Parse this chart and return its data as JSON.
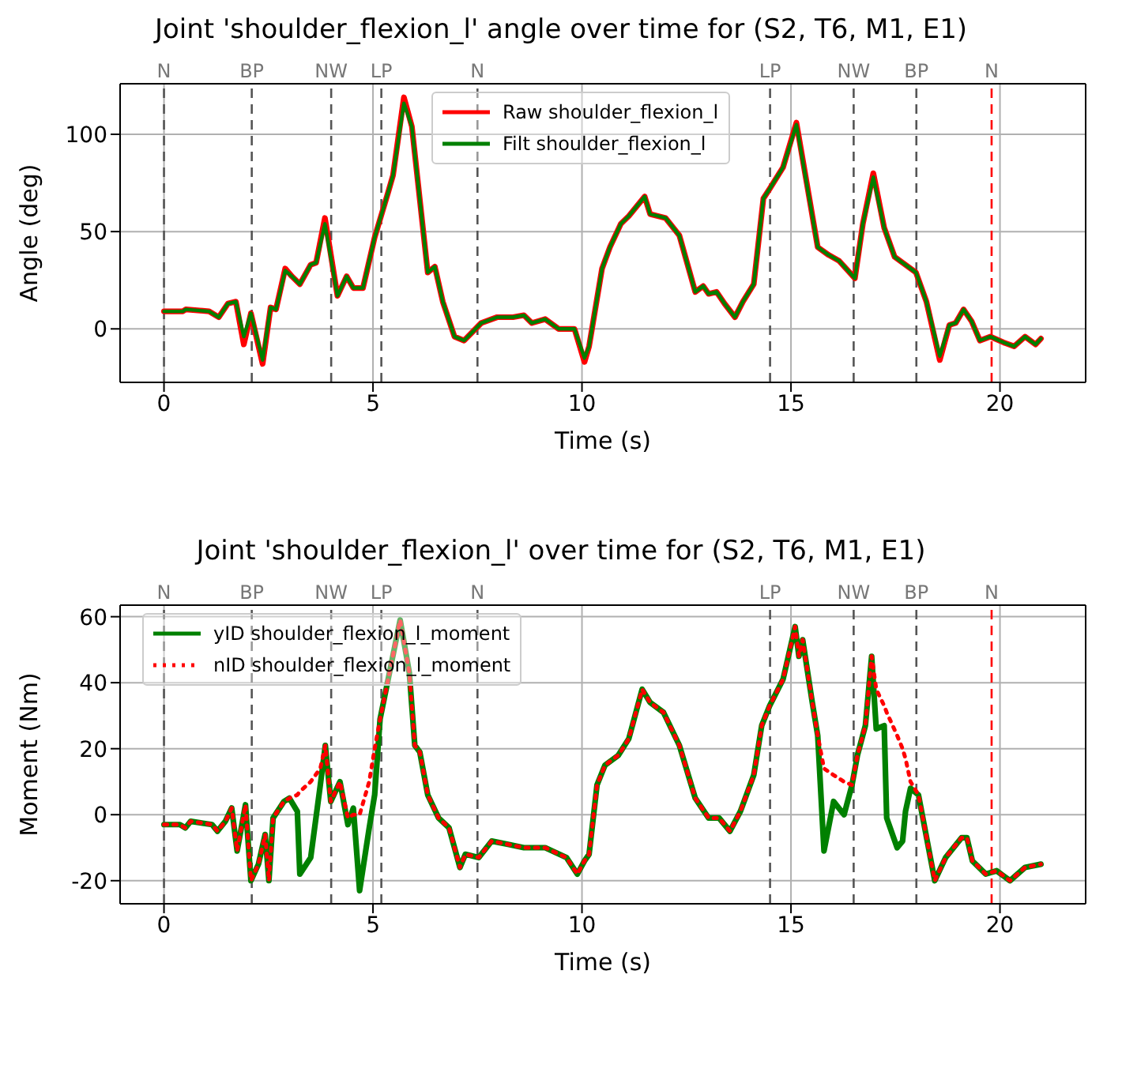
{
  "chart_data": [
    {
      "type": "line",
      "title": "Joint 'shoulder_flexion_l' angle over time for (S2, T6, M1, E1)",
      "xlabel": "Time (s)",
      "ylabel": "Angle (deg)",
      "x": [
        0,
        0.45,
        0.52,
        1.08,
        1.31,
        1.53,
        1.72,
        1.91,
        2.08,
        2.36,
        2.55,
        2.68,
        2.9,
        3.06,
        3.25,
        3.51,
        3.64,
        3.85,
        4.15,
        4.37,
        4.53,
        4.76,
        5.04,
        5.36,
        5.48,
        5.74,
        5.93,
        6.31,
        6.48,
        6.67,
        6.95,
        7.18,
        7.59,
        7.97,
        8.35,
        8.61,
        8.8,
        9.12,
        9.44,
        9.82,
        10.06,
        10.17,
        10.48,
        10.67,
        10.93,
        11.12,
        11.5,
        11.63,
        12.0,
        12.33,
        12.71,
        12.9,
        13.03,
        13.22,
        13.41,
        13.66,
        13.85,
        14.11,
        14.34,
        14.49,
        14.81,
        15.13,
        15.64,
        15.9,
        16.15,
        16.53,
        16.72,
        16.97,
        17.23,
        17.48,
        17.99,
        18.24,
        18.56,
        18.79,
        18.94,
        19.13,
        19.32,
        19.52,
        19.77,
        20.09,
        20.34,
        20.6,
        20.85,
        20.98
      ],
      "series": [
        {
          "name": "Raw shoulder_flexion_l",
          "color": "#ff0000",
          "values": [
            9,
            9,
            10,
            9,
            6,
            13,
            14,
            -8,
            8,
            -18,
            11,
            10,
            31,
            27,
            23,
            33,
            34,
            57,
            17,
            27,
            21,
            21,
            47,
            70,
            79,
            119,
            104,
            29,
            32,
            14,
            -4,
            -6,
            3,
            6,
            6,
            7,
            3,
            5,
            0,
            0,
            -17,
            -9,
            31,
            42,
            54,
            58,
            68,
            59,
            57,
            48,
            19,
            22,
            18,
            19,
            13,
            6,
            14,
            23,
            67,
            72,
            83,
            106,
            42,
            38,
            35,
            26,
            54,
            80,
            52,
            37,
            29,
            14,
            -16,
            2,
            3,
            10,
            4,
            -6,
            -4,
            -7,
            -9,
            -4,
            -8,
            -5
          ]
        },
        {
          "name": "Filt shoulder_flexion_l",
          "color": "#008000",
          "values": [
            9,
            9,
            10,
            9,
            6,
            13,
            14,
            -4,
            8,
            -16,
            11,
            10,
            30,
            27,
            23,
            33,
            34,
            54,
            17,
            27,
            21,
            21,
            47,
            70,
            79,
            116,
            104,
            29,
            32,
            14,
            -4,
            -6,
            3,
            6,
            6,
            7,
            3,
            5,
            0,
            0,
            -15,
            -9,
            31,
            42,
            54,
            58,
            68,
            59,
            57,
            48,
            19,
            22,
            18,
            19,
            13,
            6,
            14,
            23,
            67,
            72,
            83,
            105,
            42,
            38,
            35,
            26,
            54,
            78,
            52,
            37,
            29,
            14,
            -14,
            2,
            3,
            10,
            4,
            -6,
            -4,
            -7,
            -9,
            -4,
            -8,
            -5
          ]
        }
      ],
      "xlim": [
        -1.05,
        22.05
      ],
      "xticks": [
        0,
        5,
        10,
        15,
        20
      ],
      "ylim": [
        -27.5,
        126
      ],
      "yticks": [
        0,
        50,
        100
      ],
      "grid": true,
      "legend": "top",
      "marker": "none",
      "line_style": "solid",
      "ref_lines": [
        {
          "axis": "x",
          "value": 0,
          "label": "N",
          "color": "#555555",
          "line_style": "dashed"
        },
        {
          "axis": "x",
          "value": 2.1,
          "label": "BP",
          "color": "#555555",
          "line_style": "dashed"
        },
        {
          "axis": "x",
          "value": 4.0,
          "label": "NW",
          "color": "#555555",
          "line_style": "dashed"
        },
        {
          "axis": "x",
          "value": 5.2,
          "label": "LP",
          "color": "#555555",
          "line_style": "dashed"
        },
        {
          "axis": "x",
          "value": 7.5,
          "label": "N",
          "color": "#555555",
          "line_style": "dashed"
        },
        {
          "axis": "x",
          "value": 14.5,
          "label": "LP",
          "color": "#555555",
          "line_style": "dashed"
        },
        {
          "axis": "x",
          "value": 16.5,
          "label": "NW",
          "color": "#555555",
          "line_style": "dashed"
        },
        {
          "axis": "x",
          "value": 18.0,
          "label": "BP",
          "color": "#555555",
          "line_style": "dashed"
        },
        {
          "axis": "x",
          "value": 19.8,
          "label": "N",
          "color": "#ff0000",
          "line_style": "dashed"
        }
      ]
    },
    {
      "type": "line",
      "title": "Joint 'shoulder_flexion_l' over time for (S2, T6, M1, E1)",
      "xlabel": "Time (s)",
      "ylabel": "Moment (Nm)",
      "x": [
        0,
        0.38,
        0.51,
        0.64,
        1.15,
        1.28,
        1.47,
        1.62,
        1.75,
        1.95,
        2.08,
        2.26,
        2.42,
        2.51,
        2.61,
        2.87,
        3.0,
        3.19,
        3.25,
        3.51,
        3.74,
        3.86,
        3.99,
        4.21,
        4.4,
        4.53,
        4.68,
        4.91,
        5.04,
        5.17,
        5.65,
        5.87,
        6.0,
        6.12,
        6.31,
        6.57,
        6.82,
        7.08,
        7.21,
        7.53,
        7.84,
        8.23,
        8.61,
        9.12,
        9.63,
        9.89,
        10.06,
        10.17,
        10.36,
        10.55,
        10.87,
        11.12,
        11.44,
        11.63,
        11.95,
        12.33,
        12.71,
        13.03,
        13.28,
        13.54,
        13.79,
        14.11,
        14.3,
        14.49,
        14.81,
        15.1,
        15.19,
        15.28,
        15.51,
        15.64,
        15.79,
        16.02,
        16.27,
        16.46,
        16.59,
        16.78,
        16.93,
        17.04,
        17.23,
        17.29,
        17.54,
        17.67,
        17.74,
        17.86,
        18.05,
        18.44,
        18.7,
        19.08,
        19.21,
        19.34,
        19.66,
        19.92,
        20.24,
        20.6,
        20.98
      ],
      "series": [
        {
          "name": "yID shoulder_flexion_l_moment",
          "color": "#008000",
          "line_style": "solid",
          "values": [
            -3,
            -3,
            -4,
            -2,
            -3,
            -5,
            -2,
            2,
            -11,
            3,
            -20,
            -15,
            -6,
            -20,
            -1,
            4,
            5,
            1,
            -18,
            -13,
            9,
            21,
            4,
            10,
            -3,
            2,
            -23,
            -4,
            6,
            29,
            59,
            43,
            21,
            19,
            6,
            -1,
            -4,
            -16,
            -12,
            -13,
            -8,
            -9,
            -10,
            -10,
            -13,
            -18,
            -14,
            -12,
            9,
            15,
            18,
            23,
            38,
            34,
            31,
            21,
            5,
            -1,
            -1,
            -5,
            1,
            12,
            27,
            33,
            41,
            57,
            48,
            53,
            34,
            24,
            -11,
            4,
            0,
            9,
            18,
            27,
            48,
            26,
            27,
            -1,
            -10,
            -8,
            1,
            8,
            6,
            -20,
            -13,
            -7,
            -7,
            -14,
            -18,
            -17,
            -20,
            -16,
            -15
          ]
        },
        {
          "name": "nID shoulder_flexion_l_moment",
          "color": "#ff0000",
          "line_style": "dotted",
          "values": [
            -3,
            -3,
            -4,
            -2,
            -3,
            -5,
            -2,
            2,
            -11,
            3,
            -20,
            -15,
            -6,
            -20,
            -1,
            4,
            5,
            6,
            7,
            10,
            14,
            21,
            4,
            10,
            -1,
            0,
            0,
            10,
            20,
            29,
            59,
            43,
            21,
            19,
            6,
            -1,
            -4,
            -16,
            -12,
            -13,
            -8,
            -9,
            -10,
            -10,
            -13,
            -18,
            -14,
            -12,
            9,
            15,
            18,
            23,
            38,
            34,
            31,
            21,
            5,
            -1,
            -1,
            -5,
            1,
            12,
            27,
            33,
            41,
            57,
            48,
            53,
            34,
            24,
            14,
            12,
            10,
            9,
            18,
            27,
            48,
            38,
            33,
            31,
            24,
            20,
            17,
            10,
            6,
            -20,
            -13,
            -7,
            -7,
            -14,
            -18,
            -17,
            -20,
            -16,
            -15
          ]
        }
      ],
      "xlim": [
        -1.05,
        22.05
      ],
      "xticks": [
        0,
        5,
        10,
        15,
        20
      ],
      "ylim": [
        -27,
        63.5
      ],
      "yticks": [
        -20,
        0,
        20,
        40,
        60
      ],
      "grid": true,
      "legend": "top left",
      "marker": "none",
      "ref_lines": [
        {
          "axis": "x",
          "value": 0,
          "label": "N",
          "color": "#555555",
          "line_style": "dashed"
        },
        {
          "axis": "x",
          "value": 2.1,
          "label": "BP",
          "color": "#555555",
          "line_style": "dashed"
        },
        {
          "axis": "x",
          "value": 4.0,
          "label": "NW",
          "color": "#555555",
          "line_style": "dashed"
        },
        {
          "axis": "x",
          "value": 5.2,
          "label": "LP",
          "color": "#555555",
          "line_style": "dashed"
        },
        {
          "axis": "x",
          "value": 7.5,
          "label": "N",
          "color": "#555555",
          "line_style": "dashed"
        },
        {
          "axis": "x",
          "value": 14.5,
          "label": "LP",
          "color": "#555555",
          "line_style": "dashed"
        },
        {
          "axis": "x",
          "value": 16.5,
          "label": "NW",
          "color": "#555555",
          "line_style": "dashed"
        },
        {
          "axis": "x",
          "value": 18.0,
          "label": "BP",
          "color": "#555555",
          "line_style": "dashed"
        },
        {
          "axis": "x",
          "value": 19.8,
          "label": "N",
          "color": "#ff0000",
          "line_style": "dashed"
        }
      ]
    }
  ]
}
